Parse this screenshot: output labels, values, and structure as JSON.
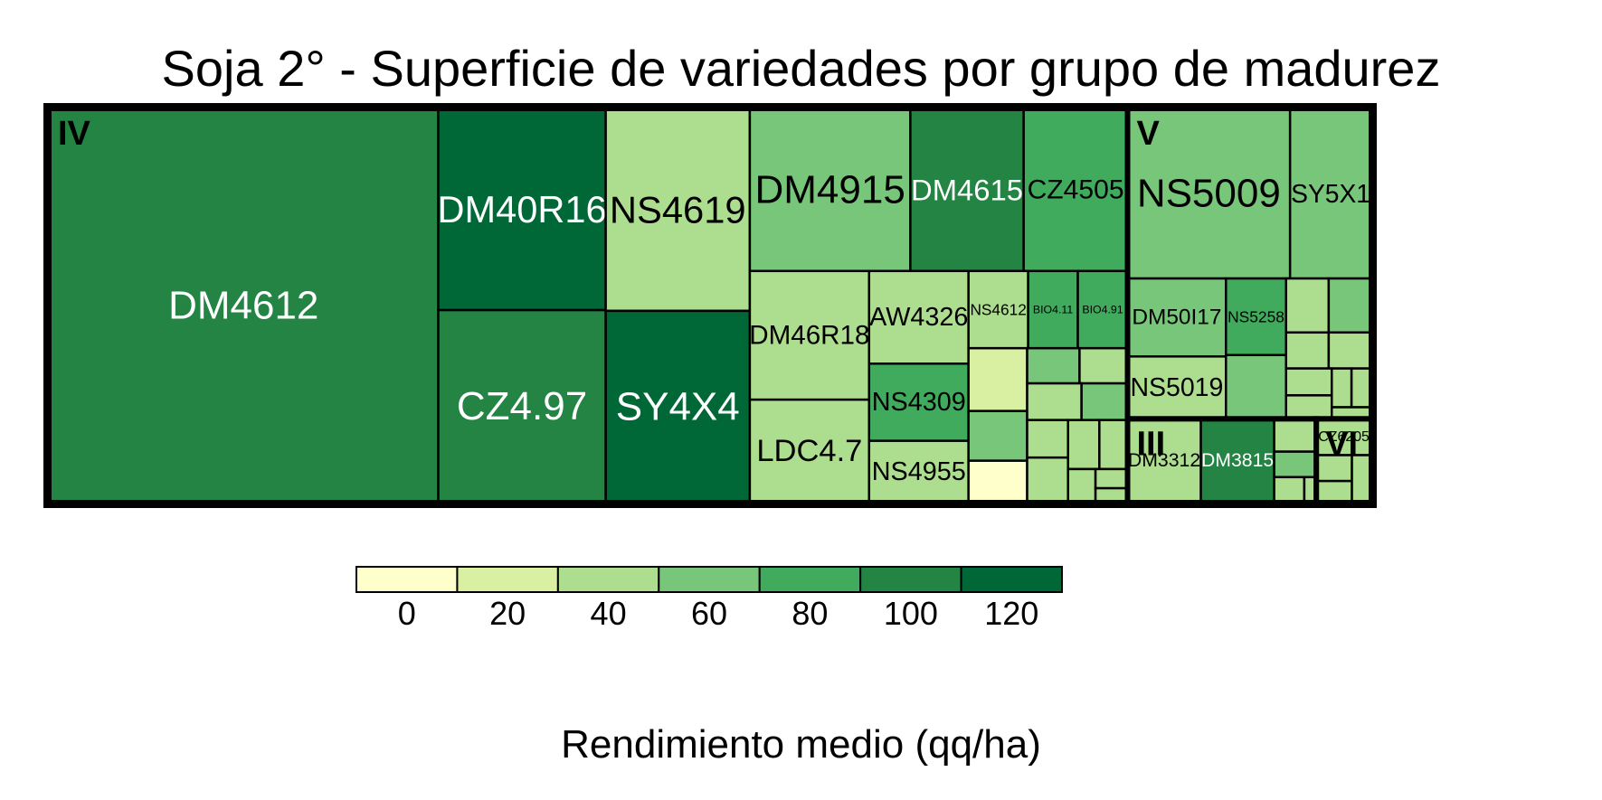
{
  "chart_data": {
    "type": "treemap",
    "title": "Soja 2° - Superficie de variedades por grupo de madurez",
    "color_scale": {
      "title": "Rendimiento medio (qq/ha)",
      "ticks": [
        0,
        20,
        40,
        60,
        80,
        100,
        120
      ],
      "bins": [
        {
          "from": -10,
          "to": 10,
          "color": "#ffffcc"
        },
        {
          "from": 10,
          "to": 30,
          "color": "#d9f0a3"
        },
        {
          "from": 30,
          "to": 50,
          "color": "#addd8e"
        },
        {
          "from": 50,
          "to": 70,
          "color": "#78c679"
        },
        {
          "from": 70,
          "to": 90,
          "color": "#41ab5d"
        },
        {
          "from": 90,
          "to": 110,
          "color": "#238443"
        },
        {
          "from": 110,
          "to": 130,
          "color": "#006837"
        }
      ]
    },
    "groups": [
      {
        "name": "IV",
        "items": [
          {
            "label": "DM4612",
            "area": 100,
            "yield": 100
          },
          {
            "label": "DM40R16",
            "area": 22,
            "yield": 115
          },
          {
            "label": "CZ4.97",
            "area": 21,
            "yield": 95
          },
          {
            "label": "NS4619",
            "area": 19,
            "yield": 40
          },
          {
            "label": "SY4X4",
            "area": 18,
            "yield": 112
          },
          {
            "label": "DM4915",
            "area": 17,
            "yield": 65
          },
          {
            "label": "DM4615",
            "area": 12,
            "yield": 95
          },
          {
            "label": "CZ4505",
            "area": 11,
            "yield": 75
          },
          {
            "label": "DM46R18",
            "area": 10,
            "yield": 45
          },
          {
            "label": "LDC4.7",
            "area": 8,
            "yield": 35
          },
          {
            "label": "AW4326",
            "area": 6,
            "yield": 40
          },
          {
            "label": "NS4309",
            "area": 5,
            "yield": 80
          },
          {
            "label": "NS4955",
            "area": 4,
            "yield": 35
          },
          {
            "label": "NS4612",
            "area": 3,
            "yield": 30
          },
          {
            "label": "BIO4.11",
            "area": 2.5,
            "yield": 80
          },
          {
            "label": "BIO4.91",
            "area": 2.5,
            "yield": 80
          },
          {
            "label": "",
            "area": 2.4,
            "yield": 18
          },
          {
            "label": "",
            "area": 1.9,
            "yield": 50
          },
          {
            "label": "",
            "area": 1.6,
            "yield": 5
          },
          {
            "label": "",
            "area": 1.2,
            "yield": 50
          },
          {
            "label": "",
            "area": 1.1,
            "yield": 40
          },
          {
            "label": "",
            "area": 1.3,
            "yield": 45
          },
          {
            "label": "",
            "area": 1.1,
            "yield": 50
          },
          {
            "label": "",
            "area": 1.0,
            "yield": 45
          },
          {
            "label": "",
            "area": 1.2,
            "yield": 45
          },
          {
            "label": "",
            "area": 1.0,
            "yield": 40
          },
          {
            "label": "",
            "area": 0.9,
            "yield": 40
          },
          {
            "label": "",
            "area": 0.6,
            "yield": 45
          },
          {
            "label": "",
            "area": 0.4,
            "yield": 40
          },
          {
            "label": "",
            "area": 0.3,
            "yield": 40
          }
        ]
      },
      {
        "name": "V",
        "items": [
          {
            "label": "NS5009",
            "area": 18,
            "yield": 60
          },
          {
            "label": "SY5X1",
            "area": 9,
            "yield": 65
          },
          {
            "label": "DM50I17",
            "area": 5,
            "yield": 65
          },
          {
            "label": "NS5019",
            "area": 4,
            "yield": 40
          },
          {
            "label": "NS5258",
            "area": 3,
            "yield": 70
          },
          {
            "label": "",
            "area": 2.5,
            "yield": 55
          },
          {
            "label": "",
            "area": 1.5,
            "yield": 45
          },
          {
            "label": "",
            "area": 1.5,
            "yield": 60
          },
          {
            "label": "",
            "area": 1.0,
            "yield": 35
          },
          {
            "label": "",
            "area": 1.0,
            "yield": 45
          },
          {
            "label": "",
            "area": 0.8,
            "yield": 40
          },
          {
            "label": "",
            "area": 0.7,
            "yield": 45
          },
          {
            "label": "",
            "area": 0.5,
            "yield": 45
          },
          {
            "label": "",
            "area": 0.5,
            "yield": 40
          },
          {
            "label": "",
            "area": 0.3,
            "yield": 45
          }
        ]
      },
      {
        "name": "III",
        "items": [
          {
            "label": "DM3312",
            "area": 4,
            "yield": 45
          },
          {
            "label": "DM3815",
            "area": 4,
            "yield": 100
          },
          {
            "label": "",
            "area": 0.9,
            "yield": 40
          },
          {
            "label": "",
            "area": 0.7,
            "yield": 50
          },
          {
            "label": "",
            "area": 0.5,
            "yield": 45
          },
          {
            "label": "",
            "area": 0.2,
            "yield": 40
          }
        ]
      },
      {
        "name": "VI",
        "items": [
          {
            "label": "CZ6205",
            "area": 1.3,
            "yield": 45
          },
          {
            "label": "",
            "area": 0.6,
            "yield": 40
          },
          {
            "label": "",
            "area": 0.5,
            "yield": 45
          },
          {
            "label": "",
            "area": 0.6,
            "yield": 35
          }
        ]
      }
    ]
  }
}
